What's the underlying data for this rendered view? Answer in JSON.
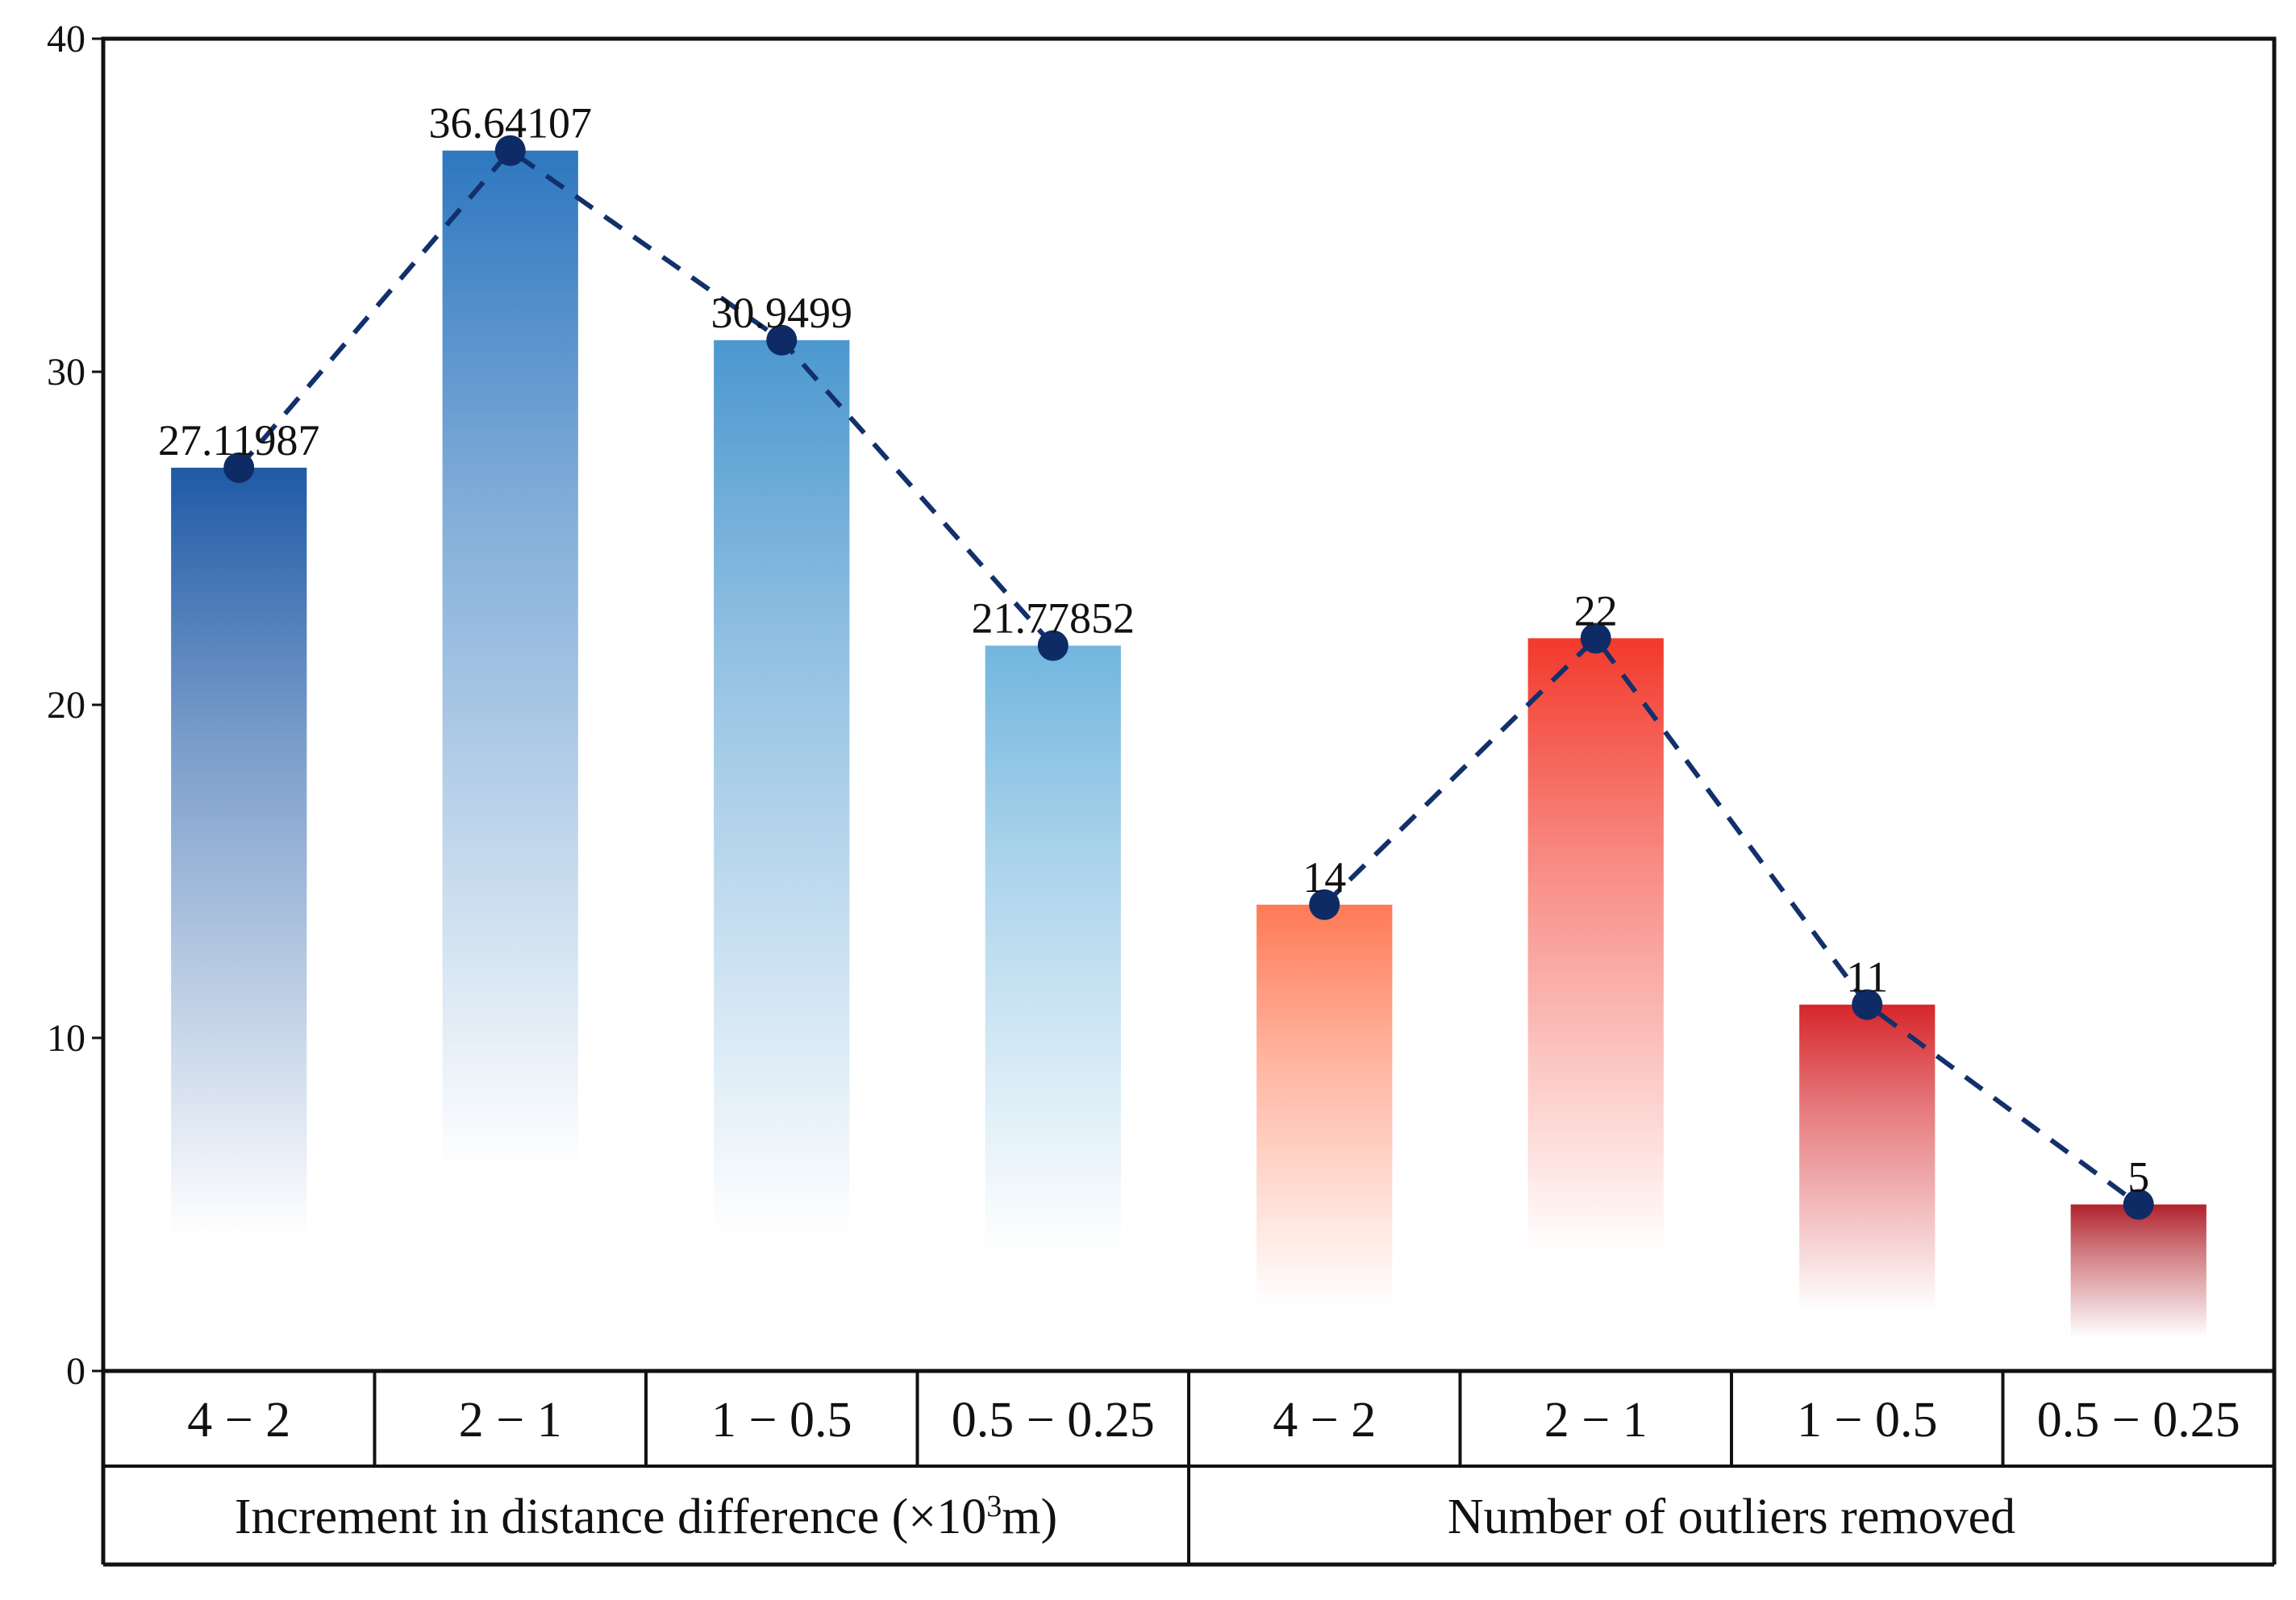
{
  "chart_data": {
    "type": "bar",
    "title": "",
    "xlabel": "",
    "ylabel": "",
    "ylim": [
      0,
      40
    ],
    "yticks": [
      0,
      10,
      20,
      30,
      40
    ],
    "grid": false,
    "groups": [
      {
        "label_parts": [
          "Increment in distance difference (×10",
          "3",
          "m)"
        ],
        "categories": [
          "4 − 2",
          "2 − 1",
          "1 − 0.5",
          "0.5 − 0.25"
        ],
        "values": [
          27.11987,
          36.64107,
          30.9499,
          21.77852
        ],
        "value_labels": [
          "27.11987",
          "36.64107",
          "30.9499",
          "21.77852"
        ],
        "bar_colors": [
          "#1f5aa6",
          "#2e77bf",
          "#4b98cf",
          "#72b6de"
        ],
        "fade_to": [
          4,
          6,
          4,
          3.5
        ]
      },
      {
        "label_parts": [
          "Number of outliers removed"
        ],
        "categories": [
          "4 − 2",
          "2 − 1",
          "1 − 0.5",
          "0.5 − 0.25"
        ],
        "values": [
          14,
          22,
          11,
          5
        ],
        "value_labels": [
          "14",
          "22",
          "11",
          "5"
        ],
        "bar_colors": [
          "#ff7a56",
          "#f2392c",
          "#d6262a",
          "#b0222c"
        ],
        "fade_to": [
          2,
          3.5,
          1.8,
          1
        ]
      }
    ],
    "line_color": "#12306b",
    "marker_color": "#0e2b66"
  }
}
